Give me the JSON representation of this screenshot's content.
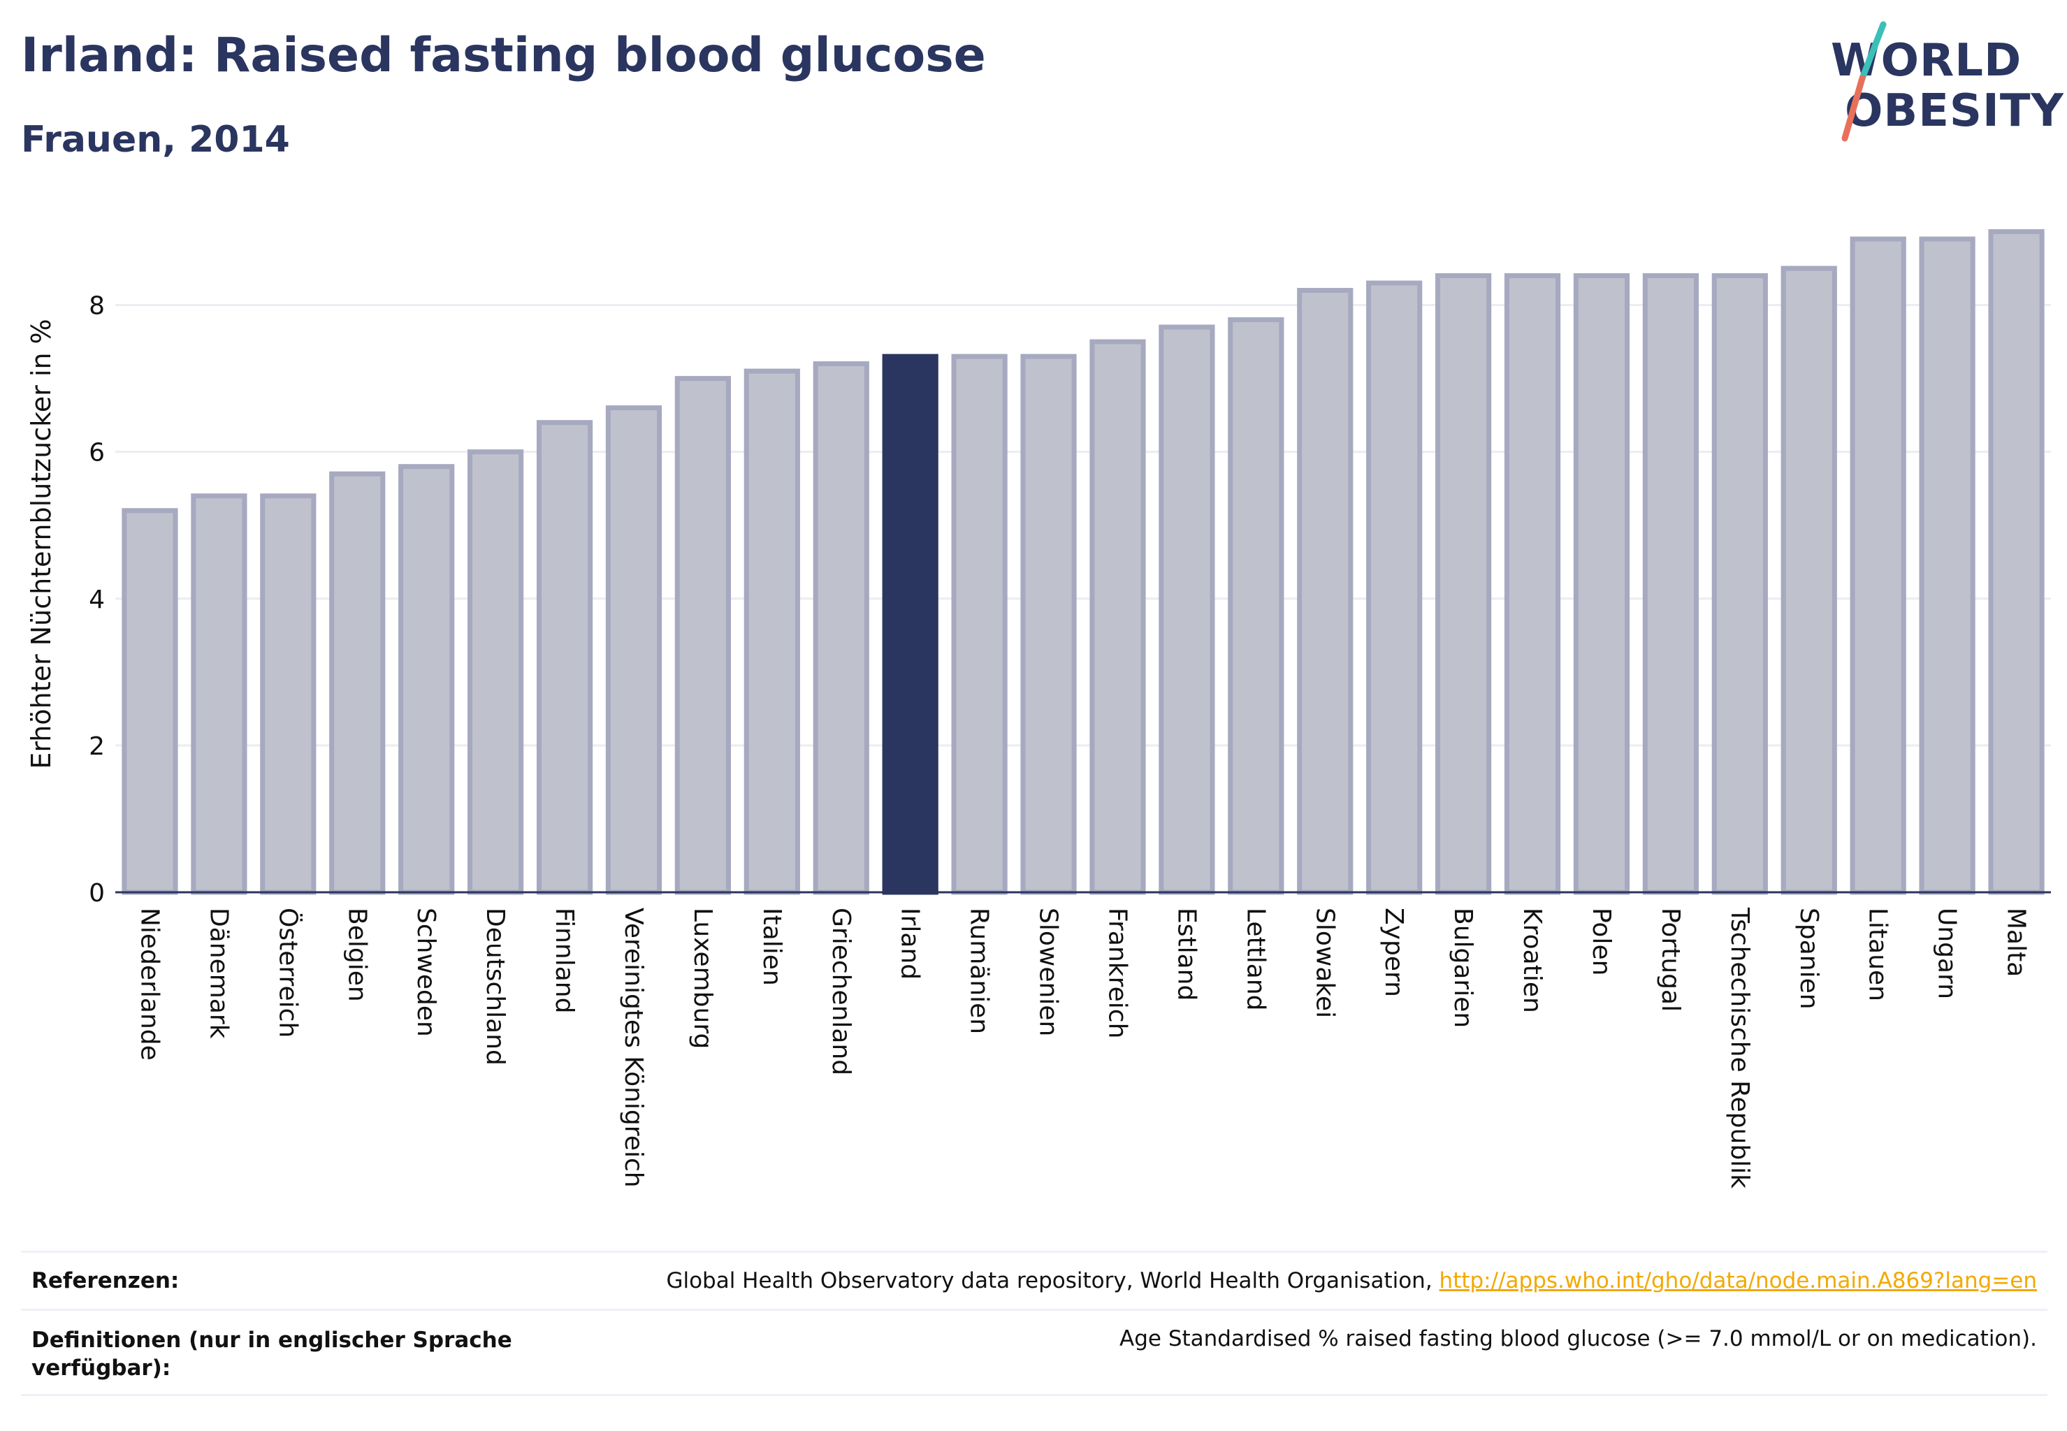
{
  "header": {
    "title": "Irland: Raised fasting blood glucose",
    "subtitle": "Frauen, 2014"
  },
  "logo": {
    "line1": "WORLD",
    "line2": "OBESITY"
  },
  "colors": {
    "bar": "#bfc1cd",
    "bar_border": "#a6a9bf",
    "highlight": "#2a3560",
    "grid": "#ececf2",
    "text": "#2a3560",
    "link": "#f2a900"
  },
  "chart_data": {
    "type": "bar",
    "categories": [
      "Niederlande",
      "Dänemark",
      "Österreich",
      "Belgien",
      "Schweden",
      "Deutschland",
      "Finnland",
      "Vereinigtes Königreich",
      "Luxemburg",
      "Italien",
      "Griechenland",
      "Irland",
      "Rumänien",
      "Slowenien",
      "Frankreich",
      "Estland",
      "Lettland",
      "Slowakei",
      "Zypern",
      "Bulgarien",
      "Kroatien",
      "Polen",
      "Portugal",
      "Tschechische Republik",
      "Spanien",
      "Litauen",
      "Ungarn",
      "Malta"
    ],
    "values": [
      5.2,
      5.4,
      5.4,
      5.7,
      5.8,
      6.0,
      6.4,
      6.6,
      7.0,
      7.1,
      7.2,
      7.3,
      7.3,
      7.3,
      7.5,
      7.7,
      7.8,
      8.2,
      8.3,
      8.4,
      8.4,
      8.4,
      8.4,
      8.4,
      8.5,
      8.9,
      8.9,
      9.0
    ],
    "highlight": "Irland",
    "ylabel": "Erhöhter Nüchternblutzucker in %",
    "xlabel": "",
    "yticks": [
      "0",
      "2",
      "4",
      "6",
      "8"
    ],
    "ylim": [
      0,
      9.3
    ],
    "grid": true
  },
  "footer": {
    "references_label": "Referenzen:",
    "references_text": "Global Health Observatory data repository, World Health Organisation,",
    "references_link": "http://apps.who.int/gho/data/node.main.A869?lang=en",
    "definitions_label": "Definitionen (nur in englischer Sprache verfügbar):",
    "definitions_text": "Age Standardised % raised fasting blood glucose (>= 7.0 mmol/L or on medication)."
  }
}
